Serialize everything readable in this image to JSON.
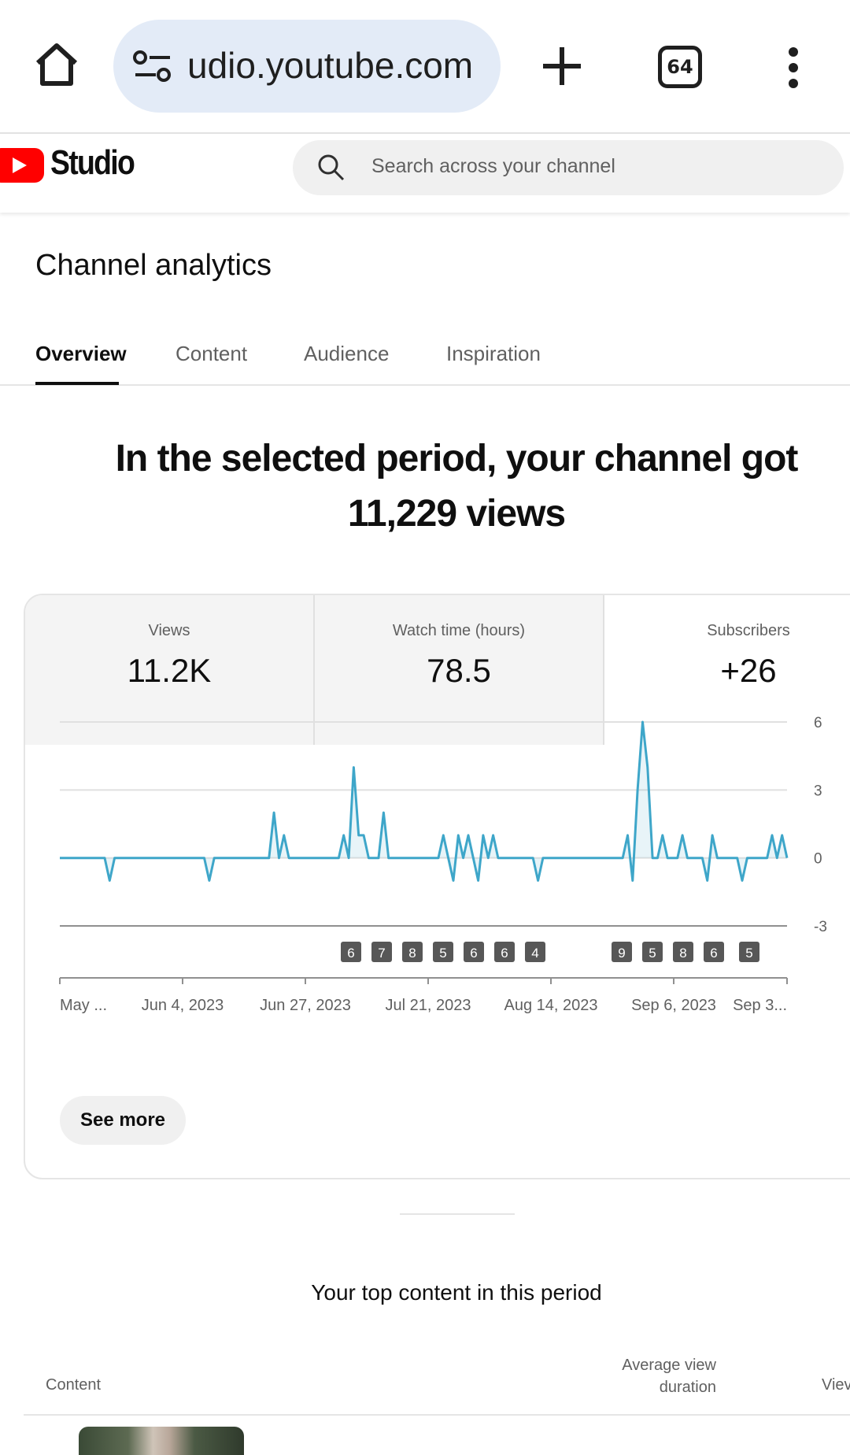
{
  "browser": {
    "url": "udio.youtube.com",
    "tab_count": "64"
  },
  "studio": {
    "brand": "Studio",
    "search_placeholder": "Search across your channel"
  },
  "page": {
    "title": "Channel analytics",
    "tabs": [
      {
        "label": "Overview",
        "active": true
      },
      {
        "label": "Content",
        "active": false
      },
      {
        "label": "Audience",
        "active": false
      },
      {
        "label": "Inspiration",
        "active": false
      }
    ],
    "headline_line1": "In the selected period, your channel got",
    "headline_line2": "11,229 views"
  },
  "metrics": [
    {
      "label": "Views",
      "value": "11.2K"
    },
    {
      "label": "Watch time (hours)",
      "value": "78.5"
    },
    {
      "label": "Subscribers",
      "value": "+26"
    }
  ],
  "chart_data": {
    "type": "line",
    "title": "",
    "xlabel": "",
    "ylabel": "",
    "y_axis_side": "right",
    "y_ticks": [
      "6",
      "3",
      "0",
      "-3"
    ],
    "ylim": [
      -3,
      6
    ],
    "x_tick_labels": [
      "May ...",
      "Jun 4, 2023",
      "Jun 27, 2023",
      "Jul 21, 2023",
      "Aug 14, 2023",
      "Sep 6, 2023",
      "Sep 3..."
    ],
    "series": [
      {
        "color": "#3ea6c9",
        "values": [
          0,
          0,
          0,
          0,
          0,
          0,
          0,
          0,
          0,
          0,
          -1,
          0,
          0,
          0,
          0,
          0,
          0,
          0,
          0,
          0,
          0,
          0,
          0,
          0,
          0,
          0,
          0,
          0,
          0,
          0,
          -1,
          0,
          0,
          0,
          0,
          0,
          0,
          0,
          0,
          0,
          0,
          0,
          0,
          2,
          0,
          1,
          0,
          0,
          0,
          0,
          0,
          0,
          0,
          0,
          0,
          0,
          0,
          1,
          0,
          4,
          1,
          1,
          0,
          0,
          0,
          2,
          0,
          0,
          0,
          0,
          0,
          0,
          0,
          0,
          0,
          0,
          0,
          1,
          0,
          -1,
          1,
          0,
          1,
          0,
          -1,
          1,
          0,
          1,
          0,
          0,
          0,
          0,
          0,
          0,
          0,
          0,
          -1,
          0,
          0,
          0,
          0,
          0,
          0,
          0,
          0,
          0,
          0,
          0,
          0,
          0,
          0,
          0,
          0,
          0,
          1,
          -1,
          3,
          6,
          4,
          0,
          0,
          1,
          0,
          0,
          0,
          1,
          0,
          0,
          0,
          0,
          -1,
          1,
          0,
          0,
          0,
          0,
          0,
          -1,
          0,
          0,
          0,
          0,
          0,
          1,
          0,
          1,
          0
        ]
      }
    ],
    "markers": [
      "6",
      "7",
      "8",
      "5",
      "6",
      "6",
      "4",
      "9",
      "5",
      "8",
      "6",
      "5"
    ],
    "grid": true
  },
  "actions": {
    "see_more": "See more"
  },
  "top_content": {
    "title": "Your top content in this period",
    "col_content": "Content",
    "col_avd": "Average view duration",
    "col_views": "Viev"
  }
}
